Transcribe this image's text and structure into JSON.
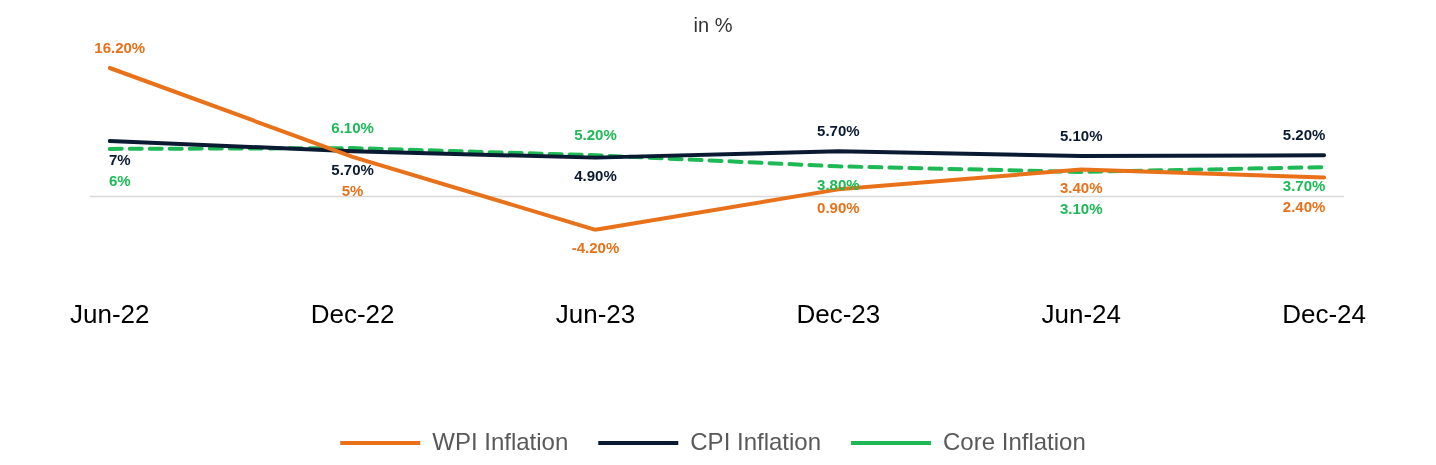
{
  "chart_data": {
    "type": "line",
    "title": "in %",
    "categories": [
      "Jun-22",
      "Dec-22",
      "Jun-23",
      "Dec-23",
      "Jun-24",
      "Dec-24"
    ],
    "series": [
      {
        "name": "WPI Inflation",
        "color": "#e8711a",
        "values": [
          16.2,
          5,
          -4.2,
          0.9,
          3.4,
          2.4
        ],
        "value_labels": [
          "16.20%",
          "5%",
          "-4.20%",
          "0.90%",
          "3.40%",
          "2.40%"
        ]
      },
      {
        "name": "CPI Inflation",
        "color": "#0b1a33",
        "values": [
          7,
          5.7,
          4.9,
          5.7,
          5.1,
          5.2
        ],
        "value_labels": [
          "7%",
          "5.70%",
          "4.90%",
          "5.70%",
          "5.10%",
          "5.20%"
        ]
      },
      {
        "name": "Core Inflation",
        "color": "#1db954",
        "line_style": "dashed",
        "values": [
          6,
          6.1,
          5.2,
          3.8,
          3.1,
          3.7
        ],
        "value_labels": [
          "6%",
          "6.10%",
          "5.20%",
          "3.80%",
          "3.10%",
          "3.70%"
        ]
      }
    ],
    "tick_labels": "x",
    "grid": false,
    "marker": "none",
    "line_style": "solid",
    "legend": "bottom"
  }
}
